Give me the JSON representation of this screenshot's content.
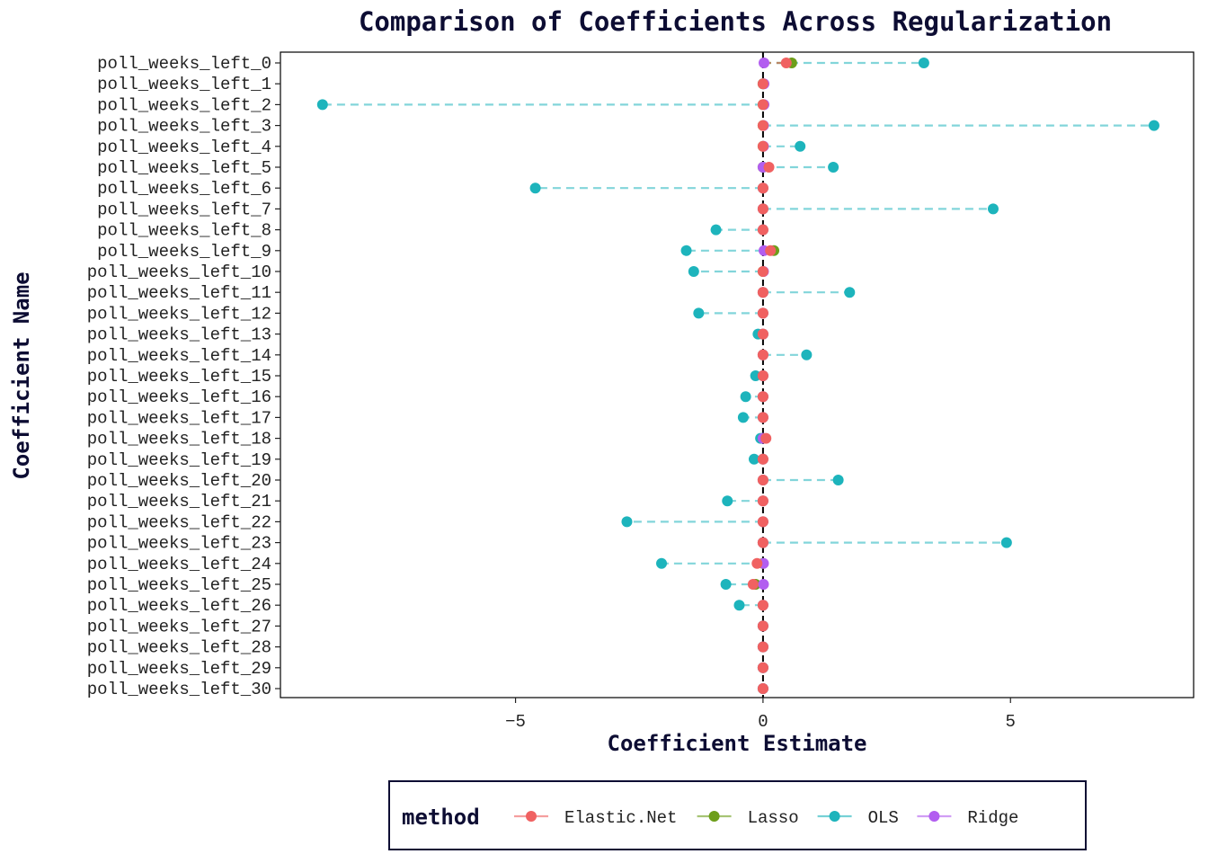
{
  "chart_data": {
    "type": "scatter",
    "title": "Comparison of Coefficients Across Regularization",
    "xlabel": "Coefficient Estimate",
    "ylabel": "Coefficient Name",
    "xlim": [
      -9.75,
      8.7
    ],
    "x_ticks": [
      -5,
      0,
      5
    ],
    "x_tick_labels": [
      "−5",
      "0",
      "5"
    ],
    "grid": false,
    "reference_line_x": 0,
    "legend": {
      "title": "method",
      "position": "bottom"
    },
    "categories": [
      "poll_weeks_left_0",
      "poll_weeks_left_1",
      "poll_weeks_left_2",
      "poll_weeks_left_3",
      "poll_weeks_left_4",
      "poll_weeks_left_5",
      "poll_weeks_left_6",
      "poll_weeks_left_7",
      "poll_weeks_left_8",
      "poll_weeks_left_9",
      "poll_weeks_left_10",
      "poll_weeks_left_11",
      "poll_weeks_left_12",
      "poll_weeks_left_13",
      "poll_weeks_left_14",
      "poll_weeks_left_15",
      "poll_weeks_left_16",
      "poll_weeks_left_17",
      "poll_weeks_left_18",
      "poll_weeks_left_19",
      "poll_weeks_left_20",
      "poll_weeks_left_21",
      "poll_weeks_left_22",
      "poll_weeks_left_23",
      "poll_weeks_left_24",
      "poll_weeks_left_25",
      "poll_weeks_left_26",
      "poll_weeks_left_27",
      "poll_weeks_left_28",
      "poll_weeks_left_29",
      "poll_weeks_left_30"
    ],
    "series": [
      {
        "name": "OLS",
        "color": "#1db4bc",
        "values": [
          3.25,
          0,
          -8.9,
          7.9,
          0.75,
          1.42,
          -4.6,
          4.65,
          -0.95,
          -1.55,
          -1.4,
          1.75,
          -1.3,
          -0.1,
          0.88,
          -0.15,
          -0.35,
          -0.4,
          -0.05,
          -0.18,
          1.52,
          -0.72,
          -2.75,
          4.92,
          -2.05,
          -0.75,
          -0.48,
          0,
          0,
          0,
          0
        ]
      },
      {
        "name": "Lasso",
        "color": "#6d9e1a",
        "values": [
          0.58,
          0,
          0,
          0,
          0,
          0,
          0,
          0,
          0,
          0.22,
          0,
          0,
          0,
          0,
          0,
          0,
          0,
          0,
          0,
          0,
          0,
          0,
          0,
          0,
          0,
          -0.15,
          0,
          0,
          0,
          0,
          0
        ]
      },
      {
        "name": "Ridge",
        "color": "#b25ef0",
        "values": [
          0.02,
          0.02,
          0.02,
          0.01,
          0.01,
          0,
          0,
          0,
          0,
          0.02,
          0.01,
          0,
          0,
          0,
          0,
          0,
          0,
          0,
          0,
          0,
          0,
          0,
          0,
          0,
          0.01,
          0.01,
          0,
          0,
          0,
          0,
          0
        ]
      },
      {
        "name": "Elastic.Net",
        "color": "#f06161",
        "values": [
          0.47,
          0,
          0,
          0,
          0,
          0.12,
          0,
          0,
          0,
          0.15,
          0,
          0,
          0,
          0,
          0,
          0,
          0,
          0,
          0.06,
          0,
          0,
          0,
          0,
          0,
          -0.12,
          -0.2,
          0,
          0,
          0,
          0,
          0
        ]
      }
    ],
    "legend_order": [
      "Elastic.Net",
      "Lasso",
      "OLS",
      "Ridge"
    ]
  }
}
